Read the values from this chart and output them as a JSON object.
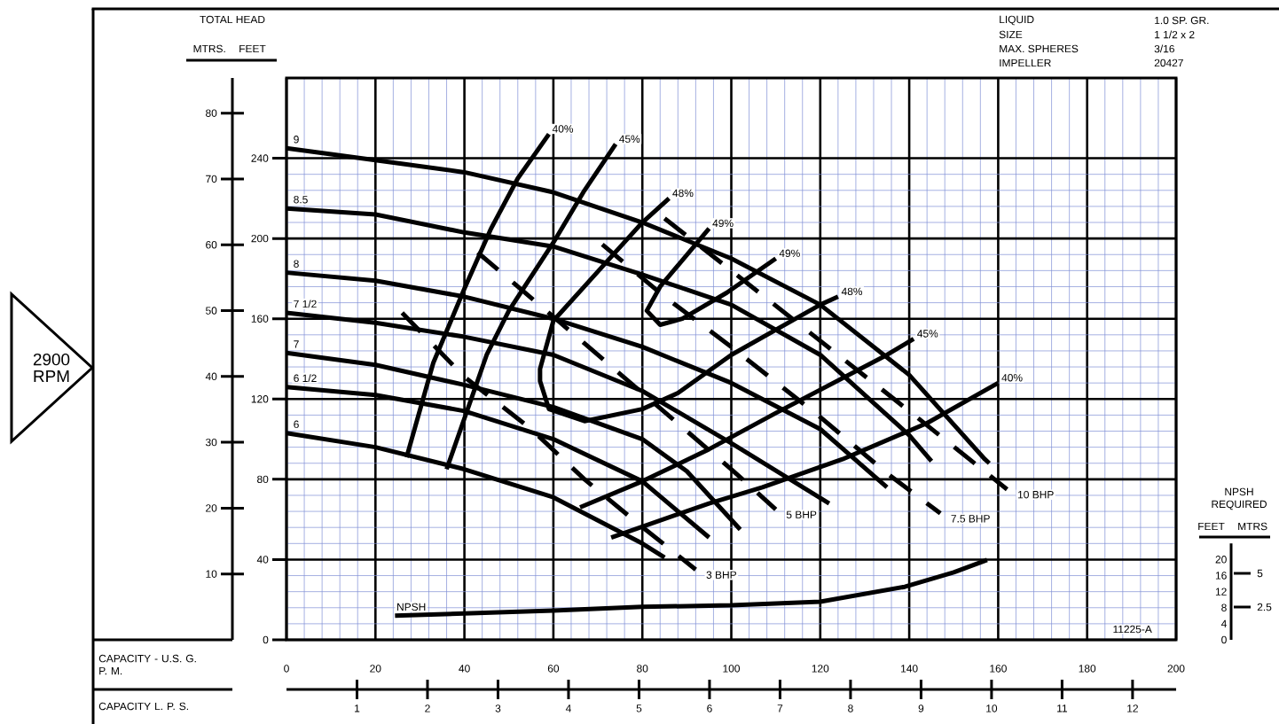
{
  "chart_data": {
    "type": "line",
    "xlabel": "CAPACITY - U.S. G. P. M.",
    "x2label": "CAPACITY L. P. S.",
    "ylabel": "FEET",
    "y2label": "MTRS.",
    "y3label": "FEET",
    "annotations": [
      "TOTAL HEAD",
      "2900 RPM",
      "LIQUID",
      "1.0 SP. GR.",
      "SIZE",
      "1 1/2 x 2",
      "MAX. SPHERES",
      "3/16",
      "IMPELLER",
      "20427",
      "11225-A",
      "NPSH REQUIRED",
      "MTRS",
      "5",
      "2.5"
    ],
    "xlim": [
      0,
      200
    ],
    "xticks": [
      0,
      20,
      40,
      60,
      80,
      100,
      120,
      140,
      160,
      180,
      200
    ],
    "ylim": [
      0,
      280
    ],
    "yticks": [
      0,
      40,
      80,
      120,
      160,
      200,
      240
    ],
    "y2lim": [
      0,
      85.34
    ],
    "y2ticks": [
      10,
      20,
      30,
      40,
      50,
      60,
      70,
      80
    ],
    "x2lim": [
      0,
      12.618
    ],
    "x2ticks": [
      1,
      2,
      3,
      4,
      5,
      6,
      7,
      8,
      9,
      10,
      11,
      12
    ],
    "y3lim": [
      0,
      24
    ],
    "y3ticks": [
      0,
      4,
      8,
      12,
      16,
      20
    ],
    "grid": true,
    "line_style": "solid",
    "series": [
      {
        "name": "9",
        "color": "#000000",
        "x": [
          0,
          20,
          40,
          60,
          80,
          100,
          120,
          140,
          157,
          158
        ],
        "values": [
          245,
          239,
          233,
          223,
          208,
          190,
          167,
          132,
          90,
          88
        ]
      },
      {
        "name": "8.5",
        "color": "#000000",
        "x": [
          0,
          20,
          40,
          60,
          80,
          100,
          120,
          140,
          145
        ],
        "values": [
          215,
          212,
          203,
          196,
          182,
          167,
          142,
          102,
          89
        ]
      },
      {
        "name": "8",
        "color": "#000000",
        "x": [
          0,
          20,
          40,
          60,
          80,
          100,
          120,
          135
        ],
        "values": [
          183,
          179,
          171,
          160,
          146,
          128,
          105,
          76
        ]
      },
      {
        "name": "7 1/2",
        "color": "#000000",
        "x": [
          0,
          20,
          40,
          60,
          80,
          100,
          122
        ],
        "values": [
          163,
          158,
          151,
          142,
          124,
          98,
          68
        ]
      },
      {
        "name": "7",
        "color": "#000000",
        "x": [
          0,
          20,
          40,
          60,
          80,
          90,
          102
        ],
        "values": [
          143,
          137,
          127,
          116,
          100,
          84,
          55
        ]
      },
      {
        "name": "6 1/2",
        "color": "#000000",
        "x": [
          0,
          20,
          40,
          60,
          80,
          95
        ],
        "values": [
          126,
          122,
          114,
          100,
          79,
          51
        ]
      },
      {
        "name": "6",
        "color": "#000000",
        "x": [
          0,
          20,
          40,
          60,
          80,
          85
        ],
        "values": [
          103,
          96,
          85,
          71,
          48,
          41
        ]
      },
      {
        "name": "40%",
        "color": "#000000",
        "x": [
          27,
          33,
          40,
          46,
          52,
          59
        ],
        "values": [
          91,
          138,
          175,
          205,
          230,
          252
        ]
      },
      {
        "name": "45%",
        "color": "#000000",
        "x": [
          36,
          45,
          50,
          60,
          67,
          74
        ],
        "values": [
          85,
          142,
          164,
          198,
          224,
          247
        ]
      },
      {
        "name": "48%",
        "color": "#000000",
        "x": [
          86,
          80,
          71,
          60,
          57,
          57,
          59,
          67,
          80,
          88,
          100,
          120,
          124
        ],
        "values": [
          220,
          208,
          186,
          159,
          135,
          129,
          115,
          109,
          115,
          123,
          142,
          167,
          171
        ]
      },
      {
        "name": "49%",
        "color": "#000000",
        "x": [
          95,
          84,
          81,
          84,
          89,
          99,
          110
        ],
        "values": [
          205,
          176,
          164,
          157,
          160,
          173,
          190
        ]
      },
      {
        "name": "45%",
        "color": "#000000",
        "x": [
          66,
          80,
          95,
          110,
          135,
          141
        ],
        "values": [
          66,
          79,
          95,
          113,
          142,
          150
        ]
      },
      {
        "name": "40%",
        "color": "#000000",
        "x": [
          73,
          95,
          107,
          125,
          144,
          160
        ],
        "values": [
          51,
          68,
          76,
          90,
          108,
          128
        ]
      },
      {
        "name": "3 BHP",
        "color": "#000000",
        "line_style": "dashed",
        "x": [
          26,
          40,
          55,
          67,
          79,
          92
        ],
        "values": [
          163,
          131,
          105,
          80,
          58,
          35
        ]
      },
      {
        "name": "5 BHP",
        "color": "#000000",
        "line_style": "dashed",
        "x": [
          43,
          60,
          80,
          100,
          110
        ],
        "values": [
          193,
          161,
          123,
          85,
          65
        ]
      },
      {
        "name": "7.5 BHP",
        "color": "#000000",
        "line_style": "dashed",
        "x": [
          71,
          85,
          100,
          120,
          135,
          147
        ],
        "values": [
          197,
          171,
          146,
          111,
          83,
          63
        ]
      },
      {
        "name": "10 BHP",
        "color": "#000000",
        "line_style": "dashed",
        "x": [
          85,
          100,
          120,
          140,
          162
        ],
        "values": [
          210,
          184,
          149,
          114,
          75
        ]
      },
      {
        "name": "NPSH",
        "color": "#000000",
        "axis": "y3",
        "x": [
          24.4,
          60,
          80,
          100,
          120,
          139,
          150,
          157.5
        ],
        "values": [
          6.0,
          7.3,
          8.2,
          8.6,
          9.5,
          13.2,
          16.8,
          19.9
        ]
      }
    ]
  }
}
